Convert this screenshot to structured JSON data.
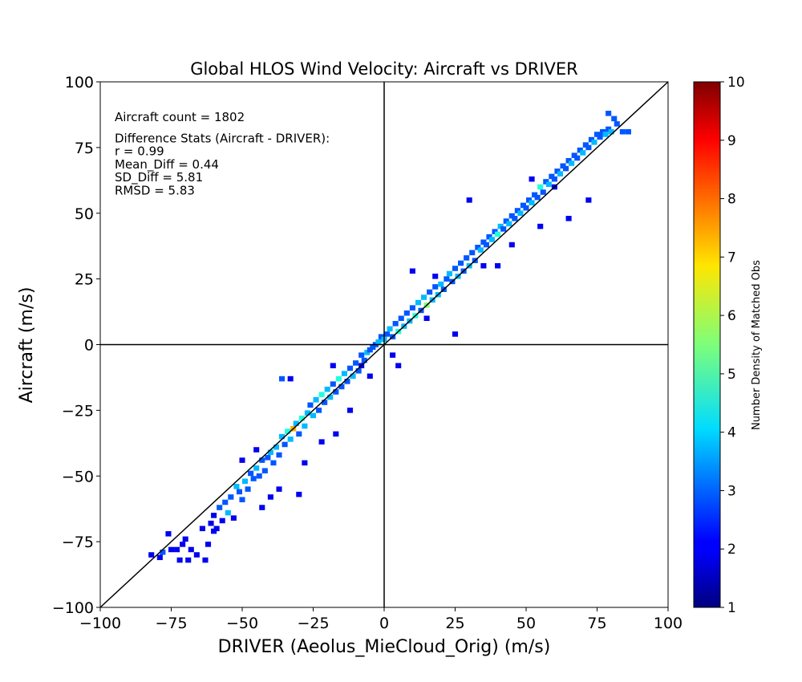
{
  "chart_data": {
    "type": "heatmap",
    "subtype": "2d-histogram-scatter",
    "title": "Global HLOS Wind Velocity: Aircraft vs DRIVER",
    "xlabel": "DRIVER (Aeolus_MieCloud_Orig) (m/s)",
    "ylabel": "Aircraft (m/s)",
    "xlim": [
      -100,
      100
    ],
    "ylim": [
      -100,
      100
    ],
    "xticks": [
      -100,
      -75,
      -50,
      -25,
      0,
      25,
      50,
      75,
      100
    ],
    "yticks": [
      -100,
      -75,
      -50,
      -25,
      0,
      25,
      50,
      75,
      100
    ],
    "xtick_labels": [
      "−100",
      "−75",
      "−50",
      "−25",
      "0",
      "25",
      "50",
      "75",
      "100"
    ],
    "ytick_labels": [
      "−100",
      "−75",
      "−50",
      "−25",
      "0",
      "25",
      "50",
      "75",
      "100"
    ],
    "grid": false,
    "reference_lines": [
      "y = x",
      "x = 0",
      "y = 0"
    ],
    "annotation_lines": [
      "Aircraft count = 1802",
      "",
      "Difference Stats (Aircraft - DRIVER):",
      "r = 0.99",
      "Mean_Diff = 0.44",
      "SD_Diff = 5.81",
      "RMSD = 5.83"
    ],
    "colorbar": {
      "label": "Number Density of Matched Obs",
      "min": 1,
      "max": 10,
      "ticks": [
        1,
        2,
        3,
        4,
        5,
        6,
        7,
        8,
        9,
        10
      ],
      "colormap": "jet"
    },
    "bins": [
      [
        -82,
        -80,
        1
      ],
      [
        -79,
        -81,
        1
      ],
      [
        -78,
        -79,
        2
      ],
      [
        -76,
        -72,
        1
      ],
      [
        -75,
        -78,
        1
      ],
      [
        -73,
        -78,
        1
      ],
      [
        -72,
        -82,
        1
      ],
      [
        -71,
        -76,
        1
      ],
      [
        -70,
        -74,
        1
      ],
      [
        -69,
        -82,
        1
      ],
      [
        -68,
        -78,
        1
      ],
      [
        -66,
        -80,
        1
      ],
      [
        -64,
        -70,
        1
      ],
      [
        -63,
        -82,
        1
      ],
      [
        -62,
        -76,
        1
      ],
      [
        -61,
        -68,
        1
      ],
      [
        -60,
        -65,
        1
      ],
      [
        -59,
        -70,
        1
      ],
      [
        -58,
        -62,
        2
      ],
      [
        -57,
        -67,
        1
      ],
      [
        -56,
        -60,
        2
      ],
      [
        -55,
        -64,
        3
      ],
      [
        -54,
        -58,
        2
      ],
      [
        -53,
        -66,
        1
      ],
      [
        -52,
        -54,
        3
      ],
      [
        -51,
        -56,
        2
      ],
      [
        -50,
        -59,
        2
      ],
      [
        -49,
        -52,
        3
      ],
      [
        -48,
        -55,
        2
      ],
      [
        -47,
        -49,
        2
      ],
      [
        -46,
        -51,
        2
      ],
      [
        -45,
        -47,
        3
      ],
      [
        -44,
        -50,
        2
      ],
      [
        -43,
        -44,
        2
      ],
      [
        -42,
        -48,
        2
      ],
      [
        -41,
        -43,
        2
      ],
      [
        -40,
        -41,
        3
      ],
      [
        -39,
        -45,
        2
      ],
      [
        -38,
        -39,
        3
      ],
      [
        -37,
        -42,
        2
      ],
      [
        -36,
        -35,
        3
      ],
      [
        -35,
        -38,
        2
      ],
      [
        -34,
        -33,
        4
      ],
      [
        -33,
        -36,
        3
      ],
      [
        -32,
        -32,
        7
      ],
      [
        -31,
        -30,
        3
      ],
      [
        -30,
        -34,
        2
      ],
      [
        -29,
        -28,
        4
      ],
      [
        -28,
        -31,
        3
      ],
      [
        -27,
        -26,
        3
      ],
      [
        -26,
        -23,
        2
      ],
      [
        -25,
        -27,
        3
      ],
      [
        -24,
        -21,
        3
      ],
      [
        -23,
        -25,
        2
      ],
      [
        -22,
        -19,
        4
      ],
      [
        -21,
        -22,
        2
      ],
      [
        -20,
        -17,
        3
      ],
      [
        -19,
        -20,
        3
      ],
      [
        -18,
        -15,
        2
      ],
      [
        -17,
        -18,
        2
      ],
      [
        -16,
        -13,
        4
      ],
      [
        -15,
        -16,
        2
      ],
      [
        -14,
        -11,
        3
      ],
      [
        -13,
        -14,
        2
      ],
      [
        -12,
        -9,
        2
      ],
      [
        -11,
        -12,
        3
      ],
      [
        -10,
        -7,
        2
      ],
      [
        -9,
        -10,
        2
      ],
      [
        -8,
        -4,
        2
      ],
      [
        -7,
        -6,
        2
      ],
      [
        -6,
        -3,
        3
      ],
      [
        -5,
        -2,
        2
      ],
      [
        -4,
        -1,
        2
      ],
      [
        -3,
        0,
        2
      ],
      [
        -2,
        1,
        3
      ],
      [
        -1,
        3,
        2
      ],
      [
        0,
        2,
        3
      ],
      [
        1,
        4,
        2
      ],
      [
        2,
        6,
        3
      ],
      [
        3,
        3,
        2
      ],
      [
        4,
        8,
        2
      ],
      [
        5,
        5,
        4
      ],
      [
        6,
        10,
        2
      ],
      [
        7,
        7,
        3
      ],
      [
        8,
        12,
        2
      ],
      [
        9,
        9,
        3
      ],
      [
        10,
        14,
        2
      ],
      [
        11,
        11,
        4
      ],
      [
        12,
        16,
        3
      ],
      [
        13,
        13,
        2
      ],
      [
        14,
        18,
        3
      ],
      [
        15,
        15,
        5
      ],
      [
        16,
        20,
        2
      ],
      [
        17,
        17,
        3
      ],
      [
        18,
        22,
        2
      ],
      [
        19,
        19,
        3
      ],
      [
        20,
        23,
        3
      ],
      [
        21,
        21,
        2
      ],
      [
        22,
        25,
        2
      ],
      [
        23,
        27,
        3
      ],
      [
        24,
        24,
        2
      ],
      [
        25,
        29,
        2
      ],
      [
        26,
        26,
        3
      ],
      [
        27,
        31,
        2
      ],
      [
        28,
        28,
        2
      ],
      [
        29,
        33,
        2
      ],
      [
        30,
        30,
        3
      ],
      [
        31,
        35,
        2
      ],
      [
        32,
        32,
        2
      ],
      [
        33,
        37,
        2
      ],
      [
        34,
        36,
        3
      ],
      [
        35,
        39,
        2
      ],
      [
        36,
        38,
        2
      ],
      [
        37,
        41,
        2
      ],
      [
        38,
        40,
        3
      ],
      [
        39,
        43,
        2
      ],
      [
        40,
        42,
        4
      ],
      [
        41,
        45,
        3
      ],
      [
        42,
        44,
        2
      ],
      [
        43,
        47,
        2
      ],
      [
        44,
        46,
        3
      ],
      [
        45,
        49,
        2
      ],
      [
        46,
        48,
        2
      ],
      [
        47,
        51,
        2
      ],
      [
        48,
        50,
        3
      ],
      [
        49,
        53,
        2
      ],
      [
        50,
        52,
        2
      ],
      [
        51,
        55,
        2
      ],
      [
        52,
        54,
        3
      ],
      [
        53,
        57,
        2
      ],
      [
        54,
        56,
        2
      ],
      [
        55,
        60,
        4
      ],
      [
        56,
        58,
        2
      ],
      [
        57,
        62,
        2
      ],
      [
        58,
        61,
        3
      ],
      [
        59,
        64,
        2
      ],
      [
        60,
        63,
        2
      ],
      [
        61,
        66,
        2
      ],
      [
        62,
        65,
        3
      ],
      [
        63,
        68,
        2
      ],
      [
        64,
        67,
        2
      ],
      [
        65,
        70,
        2
      ],
      [
        66,
        69,
        3
      ],
      [
        67,
        72,
        2
      ],
      [
        68,
        71,
        2
      ],
      [
        69,
        74,
        2
      ],
      [
        70,
        73,
        3
      ],
      [
        71,
        76,
        2
      ],
      [
        72,
        75,
        2
      ],
      [
        73,
        78,
        2
      ],
      [
        74,
        77,
        3
      ],
      [
        75,
        80,
        2
      ],
      [
        76,
        79,
        2
      ],
      [
        77,
        81,
        2
      ],
      [
        78,
        80,
        3
      ],
      [
        79,
        82,
        2
      ],
      [
        80,
        81,
        3
      ],
      [
        82,
        84,
        2
      ],
      [
        84,
        81,
        2
      ],
      [
        86,
        81,
        2
      ],
      [
        79,
        88,
        2
      ],
      [
        81,
        86,
        2
      ],
      [
        65,
        48,
        1
      ],
      [
        72,
        55,
        1
      ],
      [
        -36,
        -13,
        2
      ],
      [
        -33,
        -13,
        1
      ],
      [
        -43,
        -62,
        1
      ],
      [
        -37,
        -55,
        1
      ],
      [
        -30,
        -57,
        1
      ],
      [
        -22,
        -37,
        1
      ],
      [
        -17,
        -34,
        1
      ],
      [
        -12,
        -25,
        1
      ],
      [
        -8,
        -8,
        1
      ],
      [
        3,
        -4,
        1
      ],
      [
        5,
        -8,
        1
      ],
      [
        25,
        4,
        1
      ],
      [
        10,
        28,
        1
      ],
      [
        30,
        55,
        1
      ],
      [
        40,
        30,
        1
      ],
      [
        15,
        10,
        1
      ],
      [
        45,
        38,
        1
      ],
      [
        52,
        63,
        1
      ],
      [
        -45,
        -40,
        1
      ],
      [
        -40,
        -58,
        1
      ],
      [
        -28,
        -45,
        1
      ],
      [
        -18,
        -8,
        1
      ],
      [
        -5,
        -12,
        1
      ],
      [
        18,
        26,
        1
      ],
      [
        35,
        30,
        1
      ],
      [
        60,
        60,
        1
      ],
      [
        55,
        45,
        1
      ],
      [
        -60,
        -71,
        1
      ],
      [
        -50,
        -44,
        1
      ]
    ]
  }
}
